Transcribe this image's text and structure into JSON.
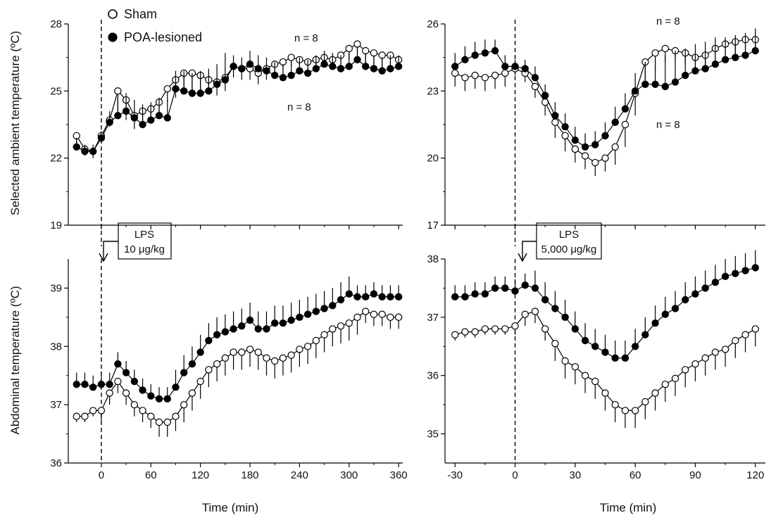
{
  "legend": {
    "sham": "Sham",
    "lesioned": "POA-lesioned"
  },
  "y_labels": {
    "top": "Selected ambient temperature (ºC)",
    "bottom": "Abdominal  temperature (ºC)"
  },
  "x_label": "Time (min)",
  "lps_left": {
    "line1": "LPS",
    "line2": "10 μg/kg"
  },
  "lps_right": {
    "line1": "LPS",
    "line2": "5,000 μg/kg"
  },
  "n_labels": {
    "top_left_upper": "n = 8",
    "top_left_lower": "n = 8",
    "top_right_upper": "n = 8",
    "top_right_lower": "n = 8"
  },
  "colors": {
    "sham_fill": "#ffffff",
    "lesioned_fill": "#000000",
    "line": "#000000"
  },
  "chart_data": [
    {
      "id": "top-left",
      "type": "line",
      "xlabel": "",
      "ylabel": "Selected ambient temperature (ºC)",
      "xlim": [
        -40,
        365
      ],
      "ylim": [
        19,
        28
      ],
      "yticks": [
        19,
        22,
        25,
        28
      ],
      "xticks": [
        0,
        60,
        120,
        180,
        240,
        300,
        360
      ],
      "show_xtick_labels": false,
      "stimulus_at": 0,
      "series": [
        {
          "name": "Sham",
          "marker": "open-circle",
          "x": [
            -30,
            -20,
            -10,
            0,
            10,
            20,
            30,
            40,
            50,
            60,
            70,
            80,
            90,
            100,
            110,
            120,
            130,
            140,
            150,
            160,
            170,
            180,
            190,
            200,
            210,
            220,
            230,
            240,
            250,
            260,
            270,
            280,
            290,
            300,
            310,
            320,
            330,
            340,
            350,
            360
          ],
          "y": [
            23.0,
            22.4,
            22.3,
            23.0,
            23.7,
            25.0,
            24.6,
            23.9,
            24.1,
            24.2,
            24.5,
            25.1,
            25.5,
            25.8,
            25.8,
            25.7,
            25.5,
            25.4,
            25.6,
            26.1,
            26.0,
            26.0,
            25.8,
            26.0,
            26.2,
            26.3,
            26.5,
            26.4,
            26.3,
            26.4,
            26.5,
            26.4,
            26.6,
            26.9,
            27.1,
            26.8,
            26.7,
            26.6,
            26.6,
            26.4
          ],
          "error": [
            0.6,
            0.3,
            0.3,
            0.3,
            0.3,
            1.0,
            0.9,
            0.6,
            0.6,
            0.6,
            0.6,
            0.6,
            0.8,
            0.8,
            0.8,
            0.8,
            0.6,
            0.6,
            0.6,
            0.5,
            0.5,
            0.5,
            0.5,
            0.5,
            0.4,
            0.4,
            0.4,
            0.4,
            0.4,
            0.4,
            0.4,
            0.4,
            0.4,
            0.5,
            0.5,
            0.6,
            0.6,
            0.6,
            0.6,
            0.4
          ]
        },
        {
          "name": "POA-lesioned",
          "marker": "filled-circle",
          "x": [
            -30,
            -20,
            -10,
            0,
            10,
            20,
            30,
            40,
            50,
            60,
            70,
            80,
            90,
            100,
            110,
            120,
            130,
            140,
            150,
            160,
            170,
            180,
            190,
            200,
            210,
            220,
            230,
            240,
            250,
            260,
            270,
            280,
            290,
            300,
            310,
            320,
            330,
            340,
            350,
            360
          ],
          "y": [
            22.5,
            22.3,
            22.3,
            22.9,
            23.6,
            23.9,
            24.1,
            23.8,
            23.5,
            23.7,
            23.9,
            23.8,
            25.1,
            25.0,
            24.9,
            24.9,
            25.0,
            25.3,
            25.5,
            26.1,
            26.0,
            26.2,
            26.0,
            25.9,
            25.7,
            25.6,
            25.7,
            25.9,
            25.8,
            26.0,
            26.2,
            26.1,
            26.0,
            26.1,
            26.4,
            26.1,
            26.0,
            25.9,
            26.0,
            26.1
          ],
          "error": [
            0.4,
            0.3,
            0.3,
            0.3,
            0.5,
            0.8,
            0.8,
            0.8,
            0.9,
            0.8,
            0.8,
            0.8,
            0.8,
            0.9,
            0.9,
            1.0,
            1.0,
            0.9,
            1.2,
            0.5,
            0.5,
            0.6,
            0.6,
            0.6,
            0.6,
            0.6,
            0.6,
            0.6,
            0.6,
            0.6,
            0.6,
            0.6,
            0.6,
            0.6,
            0.6,
            0.6,
            0.6,
            0.6,
            0.6,
            0.5
          ]
        }
      ]
    },
    {
      "id": "bottom-left",
      "type": "line",
      "xlabel": "Time (min)",
      "ylabel": "Abdominal  temperature (ºC)",
      "xlim": [
        -40,
        365
      ],
      "ylim": [
        36,
        39.5
      ],
      "yticks": [
        36,
        37,
        38,
        39
      ],
      "xticks": [
        0,
        60,
        120,
        180,
        240,
        300,
        360
      ],
      "show_xtick_labels": true,
      "stimulus_at": 0,
      "series": [
        {
          "name": "Sham",
          "marker": "open-circle",
          "x": [
            -30,
            -20,
            -10,
            0,
            10,
            20,
            30,
            40,
            50,
            60,
            70,
            80,
            90,
            100,
            110,
            120,
            130,
            140,
            150,
            160,
            170,
            180,
            190,
            200,
            210,
            220,
            230,
            240,
            250,
            260,
            270,
            280,
            290,
            300,
            310,
            320,
            330,
            340,
            350,
            360
          ],
          "y": [
            36.8,
            36.8,
            36.9,
            36.9,
            37.2,
            37.4,
            37.2,
            37.0,
            36.9,
            36.8,
            36.7,
            36.7,
            36.8,
            37.0,
            37.2,
            37.4,
            37.6,
            37.7,
            37.8,
            37.9,
            37.9,
            37.95,
            37.9,
            37.8,
            37.75,
            37.8,
            37.85,
            37.95,
            38.0,
            38.1,
            38.2,
            38.3,
            38.35,
            38.4,
            38.5,
            38.6,
            38.55,
            38.55,
            38.5,
            38.5
          ],
          "error": [
            0.1,
            0.1,
            0.1,
            0.2,
            0.2,
            0.2,
            0.2,
            0.2,
            0.2,
            0.2,
            0.25,
            0.25,
            0.25,
            0.3,
            0.3,
            0.3,
            0.3,
            0.3,
            0.3,
            0.3,
            0.3,
            0.3,
            0.3,
            0.3,
            0.3,
            0.3,
            0.3,
            0.3,
            0.3,
            0.3,
            0.3,
            0.3,
            0.3,
            0.3,
            0.3,
            0.2,
            0.2,
            0.2,
            0.2,
            0.2
          ]
        },
        {
          "name": "POA-lesioned",
          "marker": "filled-circle",
          "x": [
            -30,
            -20,
            -10,
            0,
            10,
            20,
            30,
            40,
            50,
            60,
            70,
            80,
            90,
            100,
            110,
            120,
            130,
            140,
            150,
            160,
            170,
            180,
            190,
            200,
            210,
            220,
            230,
            240,
            250,
            260,
            270,
            280,
            290,
            300,
            310,
            320,
            330,
            340,
            350,
            360
          ],
          "y": [
            37.35,
            37.35,
            37.3,
            37.35,
            37.35,
            37.7,
            37.55,
            37.4,
            37.25,
            37.15,
            37.1,
            37.1,
            37.3,
            37.55,
            37.7,
            37.9,
            38.1,
            38.2,
            38.25,
            38.3,
            38.35,
            38.45,
            38.3,
            38.3,
            38.4,
            38.4,
            38.45,
            38.5,
            38.55,
            38.6,
            38.65,
            38.7,
            38.8,
            38.9,
            38.85,
            38.85,
            38.9,
            38.85,
            38.85,
            38.85
          ],
          "error": [
            0.2,
            0.2,
            0.2,
            0.2,
            0.2,
            0.2,
            0.2,
            0.2,
            0.2,
            0.2,
            0.2,
            0.2,
            0.3,
            0.3,
            0.3,
            0.3,
            0.3,
            0.3,
            0.3,
            0.3,
            0.3,
            0.3,
            0.3,
            0.3,
            0.3,
            0.3,
            0.3,
            0.3,
            0.3,
            0.3,
            0.3,
            0.3,
            0.3,
            0.3,
            0.2,
            0.2,
            0.2,
            0.2,
            0.2,
            0.2
          ]
        }
      ]
    },
    {
      "id": "top-right",
      "type": "line",
      "xlabel": "",
      "ylabel": "",
      "xlim": [
        -35,
        125
      ],
      "ylim": [
        17,
        26
      ],
      "yticks": [
        17,
        20,
        23,
        26
      ],
      "xticks": [
        -30,
        0,
        30,
        60,
        90,
        120
      ],
      "show_xtick_labels": false,
      "stimulus_at": 0,
      "series": [
        {
          "name": "Sham",
          "marker": "open-circle",
          "x": [
            -30,
            -25,
            -20,
            -15,
            -10,
            -5,
            0,
            5,
            10,
            15,
            20,
            25,
            30,
            35,
            40,
            45,
            50,
            55,
            60,
            65,
            70,
            75,
            80,
            85,
            90,
            95,
            100,
            105,
            110,
            115,
            120
          ],
          "y": [
            23.8,
            23.6,
            23.7,
            23.6,
            23.7,
            23.8,
            24.0,
            23.8,
            23.2,
            22.5,
            21.6,
            21.0,
            20.4,
            20.1,
            19.8,
            20.0,
            20.5,
            21.5,
            22.9,
            24.3,
            24.7,
            24.9,
            24.8,
            24.7,
            24.5,
            24.6,
            24.9,
            25.1,
            25.2,
            25.3,
            25.3
          ],
          "error": [
            0.6,
            0.6,
            0.6,
            0.6,
            0.6,
            0.6,
            0.3,
            0.4,
            0.5,
            0.6,
            0.7,
            0.7,
            0.6,
            0.6,
            0.6,
            0.6,
            0.8,
            1.0,
            1.0,
            0.9,
            0.8,
            0.6,
            0.5,
            0.5,
            0.5,
            0.5,
            0.5,
            0.5,
            0.5,
            0.5,
            0.5
          ]
        },
        {
          "name": "POA-lesioned",
          "marker": "filled-circle",
          "x": [
            -30,
            -25,
            -20,
            -15,
            -10,
            -5,
            0,
            5,
            10,
            15,
            20,
            25,
            30,
            35,
            40,
            45,
            50,
            55,
            60,
            65,
            70,
            75,
            80,
            85,
            90,
            95,
            100,
            105,
            110,
            115,
            120
          ],
          "y": [
            24.1,
            24.4,
            24.6,
            24.7,
            24.8,
            24.1,
            24.1,
            24.0,
            23.6,
            22.8,
            21.9,
            21.4,
            20.8,
            20.5,
            20.6,
            21.0,
            21.6,
            22.2,
            23.0,
            23.3,
            23.3,
            23.2,
            23.4,
            23.7,
            23.9,
            24.0,
            24.2,
            24.4,
            24.5,
            24.6,
            24.8
          ],
          "error": [
            0.6,
            0.6,
            0.6,
            0.6,
            0.5,
            0.5,
            0.3,
            0.4,
            0.5,
            0.5,
            0.6,
            0.6,
            0.6,
            0.6,
            0.6,
            0.6,
            0.7,
            0.7,
            0.8,
            1.0,
            1.2,
            1.4,
            1.4,
            1.2,
            1.2,
            1.2,
            1.2,
            1.0,
            1.0,
            1.0,
            1.0
          ]
        }
      ]
    },
    {
      "id": "bottom-right",
      "type": "line",
      "xlabel": "Time (min)",
      "ylabel": "",
      "xlim": [
        -35,
        125
      ],
      "ylim": [
        34.5,
        38
      ],
      "yticks": [
        35,
        36,
        37,
        38
      ],
      "xticks": [
        -30,
        0,
        30,
        60,
        90,
        120
      ],
      "show_xtick_labels": true,
      "stimulus_at": 0,
      "series": [
        {
          "name": "Sham",
          "marker": "open-circle",
          "x": [
            -30,
            -25,
            -20,
            -15,
            -10,
            -5,
            0,
            5,
            10,
            15,
            20,
            25,
            30,
            35,
            40,
            45,
            50,
            55,
            60,
            65,
            70,
            75,
            80,
            85,
            90,
            95,
            100,
            105,
            110,
            115,
            120
          ],
          "y": [
            36.7,
            36.75,
            36.75,
            36.8,
            36.8,
            36.8,
            36.85,
            37.05,
            37.1,
            36.8,
            36.55,
            36.25,
            36.15,
            36.0,
            35.9,
            35.7,
            35.5,
            35.4,
            35.4,
            35.55,
            35.7,
            35.85,
            35.95,
            36.1,
            36.2,
            36.3,
            36.4,
            36.45,
            36.6,
            36.7,
            36.8
          ],
          "error": [
            0.1,
            0.1,
            0.1,
            0.1,
            0.1,
            0.1,
            0.15,
            0.2,
            0.2,
            0.2,
            0.3,
            0.3,
            0.3,
            0.3,
            0.3,
            0.3,
            0.3,
            0.3,
            0.3,
            0.3,
            0.3,
            0.3,
            0.3,
            0.3,
            0.3,
            0.3,
            0.3,
            0.3,
            0.3,
            0.3,
            0.3
          ]
        },
        {
          "name": "POA-lesioned",
          "marker": "filled-circle",
          "x": [
            -30,
            -25,
            -20,
            -15,
            -10,
            -5,
            0,
            5,
            10,
            15,
            20,
            25,
            30,
            35,
            40,
            45,
            50,
            55,
            60,
            65,
            70,
            75,
            80,
            85,
            90,
            95,
            100,
            105,
            110,
            115,
            120
          ],
          "y": [
            37.35,
            37.35,
            37.4,
            37.4,
            37.5,
            37.5,
            37.45,
            37.55,
            37.5,
            37.3,
            37.15,
            37.0,
            36.8,
            36.6,
            36.5,
            36.4,
            36.3,
            36.3,
            36.5,
            36.7,
            36.9,
            37.05,
            37.15,
            37.3,
            37.4,
            37.5,
            37.6,
            37.7,
            37.75,
            37.8,
            37.85
          ],
          "error": [
            0.2,
            0.2,
            0.2,
            0.2,
            0.2,
            0.2,
            0.2,
            0.2,
            0.3,
            0.3,
            0.3,
            0.3,
            0.3,
            0.3,
            0.3,
            0.3,
            0.3,
            0.3,
            0.3,
            0.3,
            0.3,
            0.3,
            0.3,
            0.3,
            0.3,
            0.3,
            0.3,
            0.3,
            0.3,
            0.3,
            0.3
          ]
        }
      ]
    }
  ]
}
